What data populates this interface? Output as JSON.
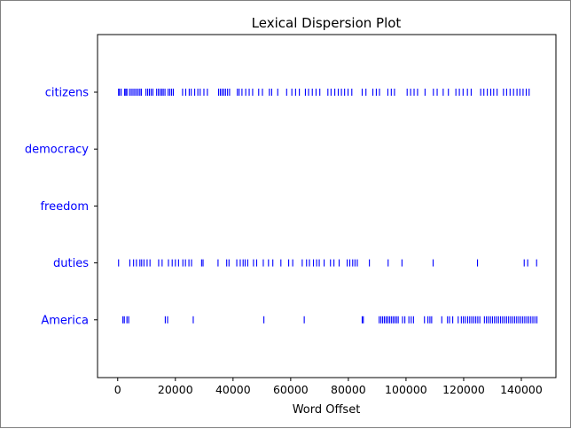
{
  "chart_data": {
    "type": "scatter",
    "title": "Lexical Dispersion Plot",
    "xlabel": "Word Offset",
    "ylabel": "",
    "xlim": [
      -7000,
      152000
    ],
    "xticks": [
      0,
      20000,
      40000,
      60000,
      80000,
      100000,
      120000,
      140000
    ],
    "xtick_labels": [
      "0",
      "20000",
      "40000",
      "60000",
      "80000",
      "100000",
      "120000",
      "140000"
    ],
    "marker": "|",
    "color": "#0000ff",
    "grid": false,
    "categories": [
      "citizens",
      "democracy",
      "freedom",
      "duties",
      "America"
    ],
    "series": [
      {
        "name": "citizens",
        "x": [
          300,
          600,
          1200,
          2400,
          2800,
          3200,
          4100,
          4700,
          5300,
          5900,
          6500,
          7100,
          7700,
          8200,
          9800,
          10400,
          11000,
          11600,
          12200,
          13500,
          14100,
          14700,
          15300,
          15800,
          16400,
          17500,
          18100,
          18700,
          19300,
          22500,
          23600,
          24800,
          25500,
          26700,
          27800,
          28600,
          29900,
          31100,
          35000,
          35600,
          36200,
          36800,
          37400,
          38100,
          38800,
          41500,
          42100,
          43100,
          44400,
          45600,
          46800,
          48900,
          50200,
          52600,
          53400,
          55500,
          58600,
          60400,
          61700,
          63000,
          65100,
          66200,
          67500,
          68800,
          70100,
          72900,
          74000,
          75300,
          76500,
          77600,
          78700,
          79900,
          81200,
          84800,
          86100,
          88500,
          89700,
          90800,
          93700,
          94900,
          96000,
          100400,
          101600,
          102800,
          104000,
          106600,
          109500,
          110800,
          112900,
          114700,
          117300,
          118500,
          119800,
          121300,
          122600,
          125900,
          127000,
          128200,
          129400,
          130400,
          131600,
          133800,
          134900,
          136100,
          137300,
          138500,
          139500,
          140600,
          141700,
          142700
        ]
      },
      {
        "name": "democracy",
        "x": []
      },
      {
        "name": "freedom",
        "x": []
      },
      {
        "name": "duties",
        "x": [
          300,
          4200,
          5500,
          6500,
          7700,
          8300,
          9100,
          10200,
          11200,
          14200,
          15400,
          17600,
          18900,
          20000,
          21100,
          22600,
          23500,
          24700,
          25600,
          29100,
          29600,
          34800,
          37800,
          38600,
          41300,
          42500,
          43500,
          44200,
          45100,
          47100,
          48200,
          50500,
          52300,
          53800,
          56600,
          59300,
          60700,
          64000,
          65500,
          66500,
          67900,
          69000,
          69900,
          71600,
          73800,
          75000,
          76800,
          79600,
          80500,
          81500,
          82300,
          83100,
          87300,
          93800,
          98600,
          109400,
          124800,
          141000,
          142200,
          145300
        ]
      },
      {
        "name": "America",
        "x": [
          1800,
          2300,
          3200,
          3800,
          16500,
          17300,
          26200,
          50700,
          64700,
          84800,
          85200,
          90700,
          91300,
          91900,
          92500,
          93100,
          93700,
          94300,
          94900,
          95500,
          96100,
          96700,
          97300,
          98800,
          99600,
          101000,
          101800,
          102600,
          106400,
          107600,
          108300,
          108900,
          112400,
          114400,
          115100,
          116200,
          118100,
          119200,
          119900,
          120600,
          121400,
          122100,
          122800,
          123500,
          124200,
          124900,
          125600,
          127200,
          127900,
          128600,
          129300,
          130000,
          130700,
          131400,
          132100,
          132800,
          133500,
          134200,
          134900,
          135600,
          136300,
          137000,
          137700,
          138400,
          139100,
          139800,
          140500,
          141200,
          141900,
          142600,
          143300,
          144000,
          144700,
          145400
        ]
      }
    ]
  }
}
